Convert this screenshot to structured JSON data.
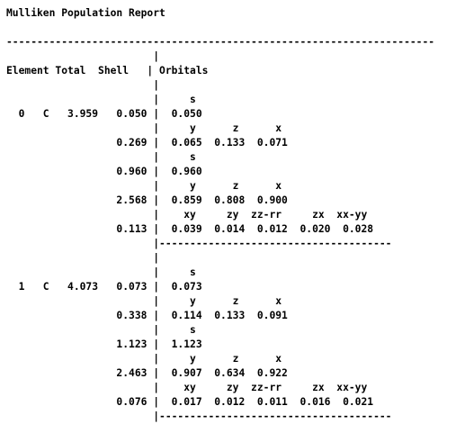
{
  "report": {
    "title": "Mulliken Population Report",
    "separator_full": "----------------------------------------------------------------------",
    "separator_block": "--------------------------------------",
    "headers": {
      "element": "Element",
      "total": "Total",
      "shell": "Shell",
      "orbitals": "Orbitals"
    },
    "atoms": [
      {
        "index": "0",
        "symbol": "C",
        "total": "3.959",
        "shells": [
          {
            "shell": "0.050",
            "labels": [
              "s"
            ],
            "values": [
              "0.050"
            ]
          },
          {
            "shell": "0.269",
            "labels": [
              "y",
              "z",
              "x"
            ],
            "values": [
              "0.065",
              "0.133",
              "0.071"
            ]
          },
          {
            "shell": "0.960",
            "labels": [
              "s"
            ],
            "values": [
              "0.960"
            ]
          },
          {
            "shell": "2.568",
            "labels": [
              "y",
              "z",
              "x"
            ],
            "values": [
              "0.859",
              "0.808",
              "0.900"
            ]
          },
          {
            "shell": "0.113",
            "labels": [
              "xy",
              "zy",
              "zz-rr",
              "zx",
              "xx-yy"
            ],
            "values": [
              "0.039",
              "0.014",
              "0.012",
              "0.020",
              "0.028"
            ]
          }
        ]
      },
      {
        "index": "1",
        "symbol": "C",
        "total": "4.073",
        "shells": [
          {
            "shell": "0.073",
            "labels": [
              "s"
            ],
            "values": [
              "0.073"
            ]
          },
          {
            "shell": "0.338",
            "labels": [
              "y",
              "z",
              "x"
            ],
            "values": [
              "0.114",
              "0.133",
              "0.091"
            ]
          },
          {
            "shell": "1.123",
            "labels": [
              "s"
            ],
            "values": [
              "1.123"
            ]
          },
          {
            "shell": "2.463",
            "labels": [
              "y",
              "z",
              "x"
            ],
            "values": [
              "0.907",
              "0.634",
              "0.922"
            ]
          },
          {
            "shell": "0.076",
            "labels": [
              "xy",
              "zy",
              "zz-rr",
              "zx",
              "xx-yy"
            ],
            "values": [
              "0.017",
              "0.012",
              "0.011",
              "0.016",
              "0.021"
            ]
          }
        ]
      }
    ]
  }
}
